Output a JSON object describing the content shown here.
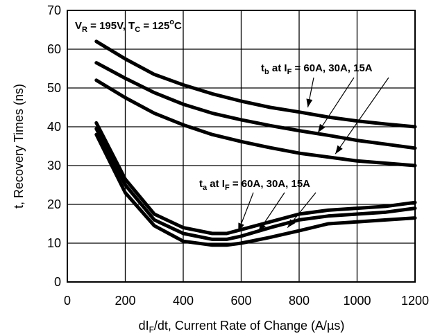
{
  "chart_data": {
    "type": "line",
    "xlabel": "dIF/dt, Current Rate of Change (A/µs)",
    "xlabel_parts": {
      "pre": "dI",
      "sub": "F",
      "post": "/dt, Current Rate of Change (A/µs)"
    },
    "ylabel": "t, Recovery Times (ns)",
    "xlim": [
      0,
      1200
    ],
    "ylim": [
      0,
      70
    ],
    "xticks": [
      0,
      200,
      400,
      600,
      800,
      1000,
      1200
    ],
    "yticks": [
      0,
      10,
      20,
      30,
      40,
      50,
      60,
      70
    ],
    "grid": true,
    "conditions": {
      "text": "VR = 195V, TC = 125°C",
      "parts": {
        "v": "V",
        "v_sub": "R",
        "v_val": " = 195V, T",
        "t_sub": "C",
        "t_val": " = 125",
        "deg": "o",
        "unit": "C"
      }
    },
    "annotations": [
      {
        "text": "tb at IF = 60A, 30A, 15A",
        "parts": {
          "t": "t",
          "t_sub": "b",
          "mid": " at I",
          "i_sub": "F",
          "rest": " = 60A, 30A, 15A"
        },
        "targets": [
          {
            "x": 830,
            "y": 45
          },
          {
            "x": 865,
            "y": 38.5
          },
          {
            "x": 925,
            "y": 33
          }
        ]
      },
      {
        "text": "ta at IF = 60A, 30A, 15A",
        "parts": {
          "t": "t",
          "t_sub": "a",
          "mid": " at I",
          "i_sub": "F",
          "rest": " = 60A, 30A, 15A"
        },
        "targets": [
          {
            "x": 590,
            "y": 13
          },
          {
            "x": 660,
            "y": 13
          },
          {
            "x": 760,
            "y": 14
          }
        ]
      }
    ],
    "series": [
      {
        "x": [
          100,
          200,
          300,
          400,
          500,
          600,
          700,
          800,
          900,
          1000,
          1100,
          1200
        ],
        "values": [
          62,
          57.5,
          53.5,
          50.8,
          48.5,
          46.6,
          45,
          43.8,
          42.5,
          41.5,
          40.7,
          40
        ]
      },
      {
        "x": [
          100,
          200,
          300,
          400,
          500,
          600,
          700,
          800,
          900,
          1000,
          1100,
          1200
        ],
        "values": [
          56.5,
          52.5,
          48.8,
          45.8,
          43.5,
          41.8,
          40.3,
          39,
          37.8,
          36.5,
          35.5,
          34.5
        ]
      },
      {
        "x": [
          100,
          200,
          300,
          400,
          500,
          600,
          700,
          800,
          900,
          1000,
          1100,
          1200
        ],
        "values": [
          52,
          47.5,
          43.5,
          40.5,
          38,
          36.2,
          34.6,
          33.2,
          32.2,
          31.2,
          30.6,
          30
        ]
      },
      {
        "x": [
          100,
          200,
          300,
          400,
          500,
          550,
          600,
          700,
          800,
          900,
          1000,
          1100,
          1200
        ],
        "values": [
          41,
          26.5,
          17.5,
          14,
          12.5,
          12.5,
          13.5,
          15.5,
          17.5,
          18.5,
          19,
          19.5,
          20.5
        ]
      },
      {
        "x": [
          100,
          200,
          300,
          400,
          500,
          550,
          600,
          700,
          800,
          900,
          1000,
          1100,
          1200
        ],
        "values": [
          39.5,
          25,
          16,
          12.5,
          11,
          11,
          11.8,
          14,
          16,
          17,
          17.5,
          18,
          19
        ]
      },
      {
        "x": [
          100,
          200,
          300,
          400,
          500,
          550,
          600,
          700,
          800,
          900,
          1000,
          1100,
          1200
        ],
        "values": [
          38,
          23,
          14.5,
          10.5,
          9.5,
          9.5,
          10,
          11.5,
          13.2,
          15,
          15.5,
          16,
          16.5
        ]
      }
    ]
  }
}
